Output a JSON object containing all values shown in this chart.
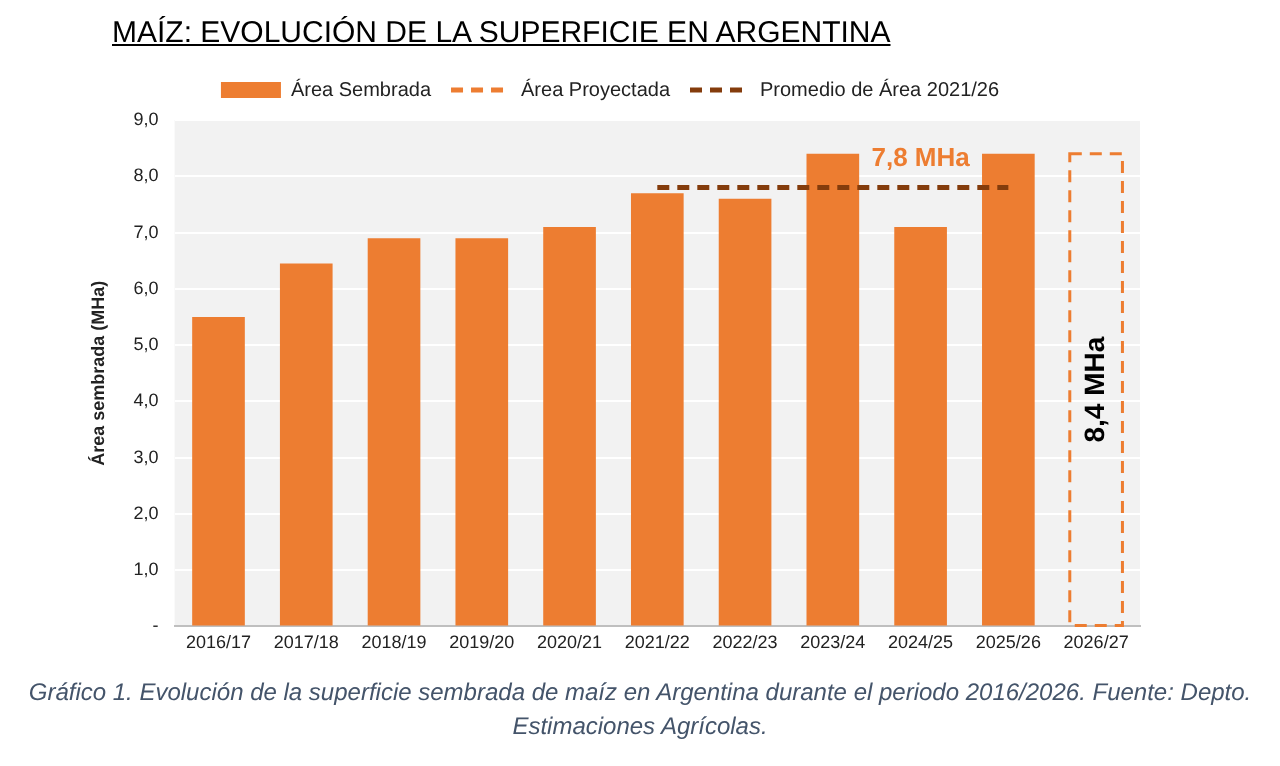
{
  "chart_data": {
    "type": "bar",
    "title": "MAÍZ: EVOLUCIÓN DE LA SUPERFICIE EN ARGENTINA",
    "ylabel": "Área sembrada (MHa)",
    "categories": [
      "2016/17",
      "2017/18",
      "2018/19",
      "2019/20",
      "2020/21",
      "2021/22",
      "2022/23",
      "2023/24",
      "2024/25",
      "2025/26",
      "2026/27"
    ],
    "series": [
      {
        "name": "Área Sembrada",
        "color": "#ed7d31",
        "values": [
          5.5,
          6.45,
          6.9,
          6.9,
          7.1,
          7.7,
          7.6,
          8.4,
          7.1,
          8.4,
          null
        ]
      },
      {
        "name": "Área Proyectada",
        "color": "#ed7d31",
        "line_style": "dashed",
        "values": [
          null,
          null,
          null,
          null,
          null,
          null,
          null,
          null,
          null,
          null,
          8.4
        ],
        "value_labels": [
          null,
          null,
          null,
          null,
          null,
          null,
          null,
          null,
          null,
          null,
          "8,4 MHa"
        ]
      },
      {
        "name": "Promedio de Área 2021/26",
        "type": "line",
        "color": "#843c0c",
        "line_style": "dashed",
        "marker": "none",
        "values": [
          null,
          null,
          null,
          null,
          null,
          7.8,
          7.8,
          7.8,
          7.8,
          7.8,
          null
        ]
      }
    ],
    "annotations": [
      {
        "text": "7,8 MHa",
        "x": "2024/25",
        "y": 7.8
      },
      "Gráfico 1. Evolución de la superficie sembrada de maíz en Argentina durante el periodo 2016/2026. Fuente: Depto. Estimaciones Agrícolas."
    ],
    "ylim": [
      0,
      9
    ],
    "yticks": [
      {
        "value": 0,
        "label": "-"
      },
      {
        "value": 1,
        "label": "1,0"
      },
      {
        "value": 2,
        "label": "2,0"
      },
      {
        "value": 3,
        "label": "3,0"
      },
      {
        "value": 4,
        "label": "4,0"
      },
      {
        "value": 5,
        "label": "5,0"
      },
      {
        "value": 6,
        "label": "6,0"
      },
      {
        "value": 7,
        "label": "7,0"
      },
      {
        "value": 8,
        "label": "8,0"
      },
      {
        "value": 9,
        "label": "9,0"
      }
    ],
    "grid": "y",
    "legend": "top"
  }
}
